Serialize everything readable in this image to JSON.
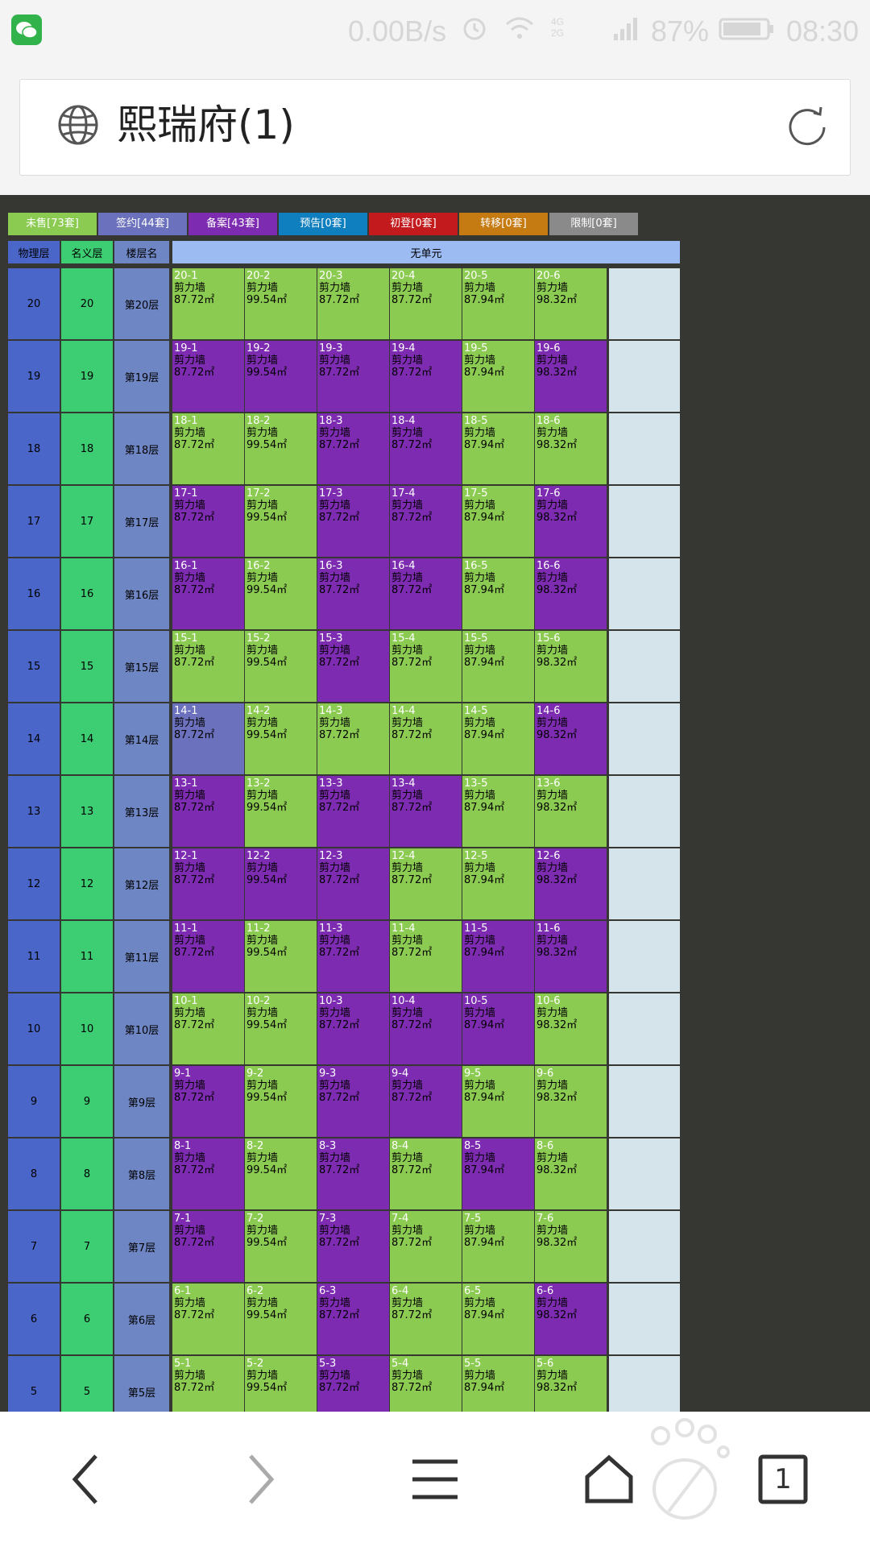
{
  "status_bar": {
    "net_speed": "0.00B/s",
    "network_type": "4G\n2G",
    "battery": "87%",
    "time": "08:30",
    "app_icon": "wechat-icon"
  },
  "address_bar": {
    "title": "熙瑞府(1)",
    "left_icon": "globe-icon",
    "right_icon": "refresh-icon"
  },
  "legend": [
    {
      "label": "未售[73套]",
      "color": "#8ccb52"
    },
    {
      "label": "签约[44套]",
      "color": "#6b71bd"
    },
    {
      "label": "备案[43套]",
      "color": "#7d2bb0"
    },
    {
      "label": "预告[0套]",
      "color": "#0f7fbf"
    },
    {
      "label": "初登[0套]",
      "color": "#c21a1d"
    },
    {
      "label": "转移[0套]",
      "color": "#c67a12"
    },
    {
      "label": "限制[0套]",
      "color": "#8a8a8a"
    }
  ],
  "columns": {
    "physical": "物理层",
    "nominal": "名义层",
    "floor_name": "楼层名",
    "unit_group": "无单元"
  },
  "colors": {
    "unsold": "#8ccb52",
    "signed": "#6b71bd",
    "filed": "#7d2bb0",
    "physical_col": "#4a66c9",
    "nominal_col": "#3dcd72",
    "floor_col": "#6f86c4",
    "header": "#9dbbf3",
    "empty": "#d5e4ea"
  },
  "unit_type": "剪力墙",
  "areas": [
    "87.72㎡",
    "99.54㎡",
    "87.72㎡",
    "87.72㎡",
    "87.94㎡",
    "98.32㎡"
  ],
  "floors": [
    {
      "physical": "20",
      "nominal": "20",
      "name": "第20层",
      "units": [
        "20-1",
        "20-2",
        "20-3",
        "20-4",
        "20-5",
        "20-6"
      ],
      "status": [
        "unsold",
        "unsold",
        "unsold",
        "unsold",
        "unsold",
        "unsold"
      ]
    },
    {
      "physical": "19",
      "nominal": "19",
      "name": "第19层",
      "units": [
        "19-1",
        "19-2",
        "19-3",
        "19-4",
        "19-5",
        "19-6"
      ],
      "status": [
        "filed",
        "filed",
        "filed",
        "filed",
        "unsold",
        "filed"
      ]
    },
    {
      "physical": "18",
      "nominal": "18",
      "name": "第18层",
      "units": [
        "18-1",
        "18-2",
        "18-3",
        "18-4",
        "18-5",
        "18-6"
      ],
      "status": [
        "unsold",
        "unsold",
        "filed",
        "filed",
        "unsold",
        "unsold"
      ]
    },
    {
      "physical": "17",
      "nominal": "17",
      "name": "第17层",
      "units": [
        "17-1",
        "17-2",
        "17-3",
        "17-4",
        "17-5",
        "17-6"
      ],
      "status": [
        "filed",
        "unsold",
        "filed",
        "filed",
        "unsold",
        "filed"
      ]
    },
    {
      "physical": "16",
      "nominal": "16",
      "name": "第16层",
      "units": [
        "16-1",
        "16-2",
        "16-3",
        "16-4",
        "16-5",
        "16-6"
      ],
      "status": [
        "filed",
        "unsold",
        "filed",
        "filed",
        "unsold",
        "filed"
      ]
    },
    {
      "physical": "15",
      "nominal": "15",
      "name": "第15层",
      "units": [
        "15-1",
        "15-2",
        "15-3",
        "15-4",
        "15-5",
        "15-6"
      ],
      "status": [
        "unsold",
        "unsold",
        "filed",
        "unsold",
        "unsold",
        "unsold"
      ]
    },
    {
      "physical": "14",
      "nominal": "14",
      "name": "第14层",
      "units": [
        "14-1",
        "14-2",
        "14-3",
        "14-4",
        "14-5",
        "14-6"
      ],
      "status": [
        "signed",
        "unsold",
        "unsold",
        "unsold",
        "unsold",
        "filed"
      ]
    },
    {
      "physical": "13",
      "nominal": "13",
      "name": "第13层",
      "units": [
        "13-1",
        "13-2",
        "13-3",
        "13-4",
        "13-5",
        "13-6"
      ],
      "status": [
        "filed",
        "unsold",
        "filed",
        "filed",
        "unsold",
        "unsold"
      ]
    },
    {
      "physical": "12",
      "nominal": "12",
      "name": "第12层",
      "units": [
        "12-1",
        "12-2",
        "12-3",
        "12-4",
        "12-5",
        "12-6"
      ],
      "status": [
        "filed",
        "filed",
        "filed",
        "unsold",
        "unsold",
        "filed"
      ]
    },
    {
      "physical": "11",
      "nominal": "11",
      "name": "第11层",
      "units": [
        "11-1",
        "11-2",
        "11-3",
        "11-4",
        "11-5",
        "11-6"
      ],
      "status": [
        "filed",
        "unsold",
        "filed",
        "unsold",
        "filed",
        "filed"
      ]
    },
    {
      "physical": "10",
      "nominal": "10",
      "name": "第10层",
      "units": [
        "10-1",
        "10-2",
        "10-3",
        "10-4",
        "10-5",
        "10-6"
      ],
      "status": [
        "unsold",
        "unsold",
        "filed",
        "filed",
        "filed",
        "unsold"
      ]
    },
    {
      "physical": "9",
      "nominal": "9",
      "name": "第9层",
      "units": [
        "9-1",
        "9-2",
        "9-3",
        "9-4",
        "9-5",
        "9-6"
      ],
      "status": [
        "filed",
        "unsold",
        "filed",
        "filed",
        "unsold",
        "unsold"
      ]
    },
    {
      "physical": "8",
      "nominal": "8",
      "name": "第8层",
      "units": [
        "8-1",
        "8-2",
        "8-3",
        "8-4",
        "8-5",
        "8-6"
      ],
      "status": [
        "filed",
        "unsold",
        "filed",
        "unsold",
        "filed",
        "unsold"
      ]
    },
    {
      "physical": "7",
      "nominal": "7",
      "name": "第7层",
      "units": [
        "7-1",
        "7-2",
        "7-3",
        "7-4",
        "7-5",
        "7-6"
      ],
      "status": [
        "filed",
        "unsold",
        "filed",
        "unsold",
        "unsold",
        "unsold"
      ]
    },
    {
      "physical": "6",
      "nominal": "6",
      "name": "第6层",
      "units": [
        "6-1",
        "6-2",
        "6-3",
        "6-4",
        "6-5",
        "6-6"
      ],
      "status": [
        "unsold",
        "unsold",
        "filed",
        "unsold",
        "unsold",
        "filed"
      ]
    },
    {
      "physical": "5",
      "nominal": "5",
      "name": "第5层",
      "units": [
        "5-1",
        "5-2",
        "5-3",
        "5-4",
        "5-5",
        "5-6"
      ],
      "status": [
        "unsold",
        "unsold",
        "filed",
        "unsold",
        "unsold",
        "unsold"
      ]
    }
  ],
  "nav": {
    "back_icon": "back-arrow-icon",
    "forward_icon": "forward-arrow-icon",
    "menu_icon": "menu-icon",
    "home_icon": "home-icon",
    "tab_count": "1"
  }
}
